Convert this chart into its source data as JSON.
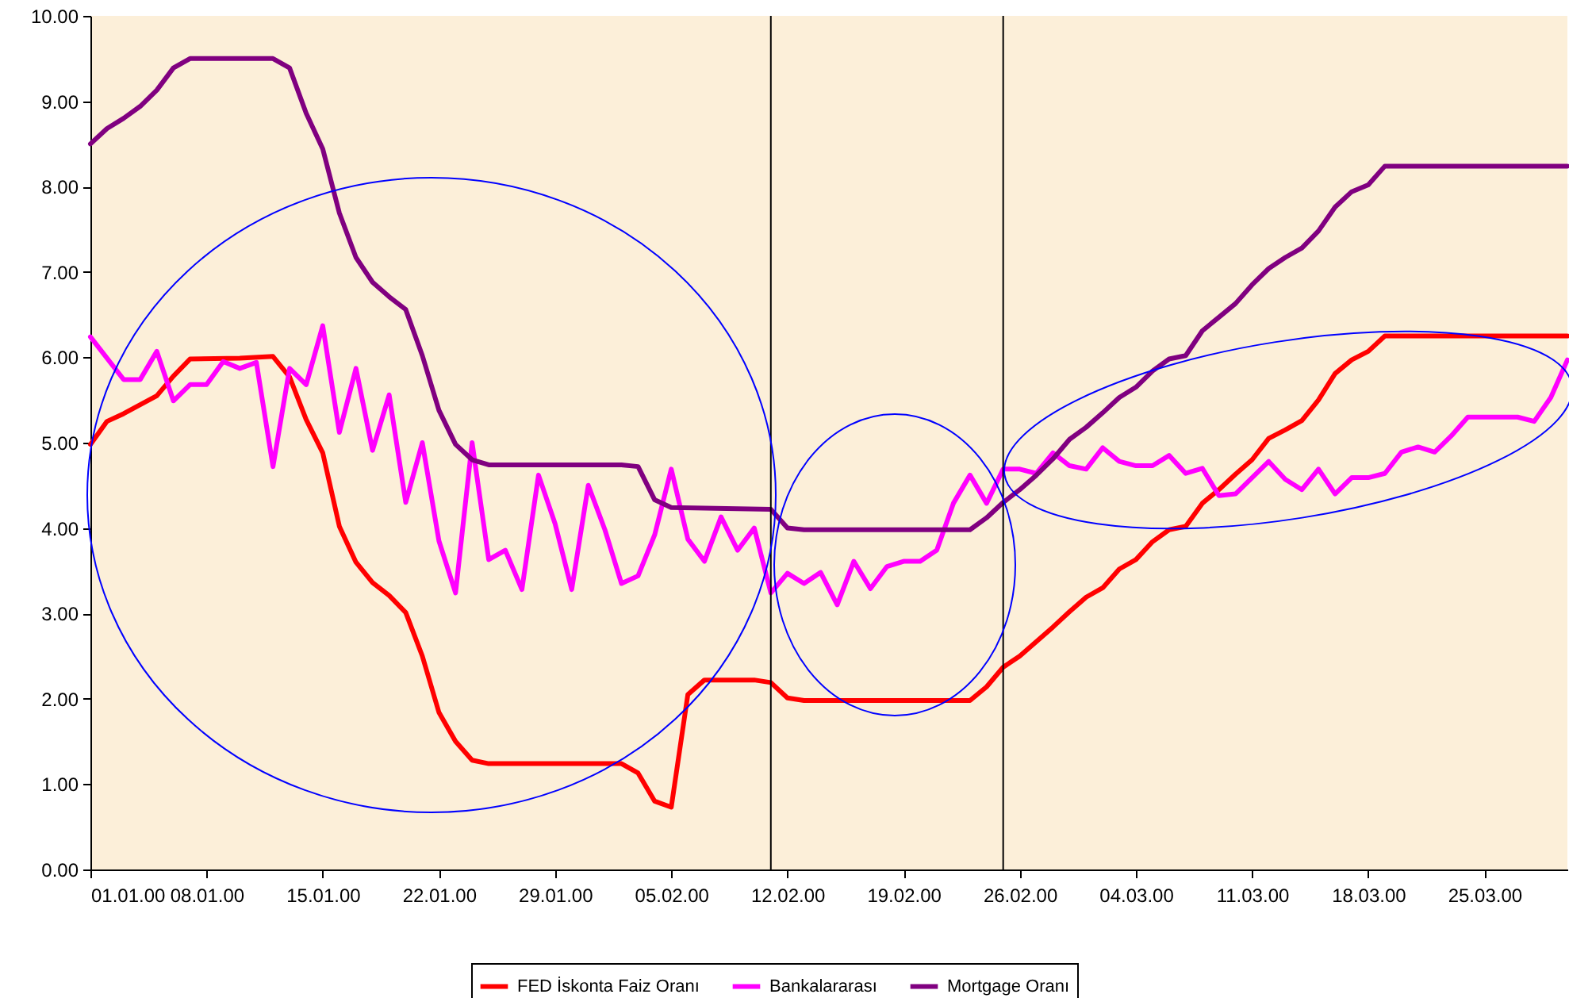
{
  "chart_data": {
    "type": "line",
    "xlim": [
      "2000-01-01",
      "2000-03-30"
    ],
    "xticks": [
      {
        "value": "2000-01-01",
        "label": "01.01.00"
      },
      {
        "value": "2000-01-08",
        "label": "08.01.00"
      },
      {
        "value": "2000-01-15",
        "label": "15.01.00"
      },
      {
        "value": "2000-01-22",
        "label": "22.01.00"
      },
      {
        "value": "2000-01-29",
        "label": "29.01.00"
      },
      {
        "value": "2000-02-05",
        "label": "05.02.00"
      },
      {
        "value": "2000-02-12",
        "label": "12.02.00"
      },
      {
        "value": "2000-02-19",
        "label": "19.02.00"
      },
      {
        "value": "2000-02-26",
        "label": "26.02.00"
      },
      {
        "value": "2000-03-04",
        "label": "04.03.00"
      },
      {
        "value": "2000-03-11",
        "label": "11.03.00"
      },
      {
        "value": "2000-03-18",
        "label": "18.03.00"
      },
      {
        "value": "2000-03-25",
        "label": "25.03.00"
      }
    ],
    "ylim": [
      0,
      10
    ],
    "yticks": [
      {
        "value": 0,
        "label": "0.00"
      },
      {
        "value": 1,
        "label": "1.00"
      },
      {
        "value": 2,
        "label": "2.00"
      },
      {
        "value": 3,
        "label": "3.00"
      },
      {
        "value": 4,
        "label": "4.00"
      },
      {
        "value": 5,
        "label": "5.00"
      },
      {
        "value": 6,
        "label": "6.00"
      },
      {
        "value": 7,
        "label": "7.00"
      },
      {
        "value": 8,
        "label": "8.00"
      },
      {
        "value": 9,
        "label": "9.00"
      },
      {
        "value": 10,
        "label": "10.00"
      }
    ],
    "grid": false,
    "legend": "bottom",
    "line_style": "solid",
    "ref_lines": [
      {
        "axis": "x",
        "value": "2000-02-11",
        "color": "#000000"
      },
      {
        "axis": "x",
        "value": "2000-02-25",
        "color": "#000000"
      }
    ],
    "series": [
      {
        "name": "FED İskonta Faiz Oranı",
        "color": "#ff0000",
        "x": [
          "2000-01-01",
          "2000-01-02",
          "2000-01-03",
          "2000-01-05",
          "2000-01-06",
          "2000-01-07",
          "2000-01-10",
          "2000-01-12",
          "2000-01-13",
          "2000-01-14",
          "2000-01-15",
          "2000-01-16",
          "2000-01-17",
          "2000-01-18",
          "2000-01-19",
          "2000-01-20",
          "2000-01-21",
          "2000-01-22",
          "2000-01-23",
          "2000-01-24",
          "2000-01-25",
          "2000-02-02",
          "2000-02-03",
          "2000-02-04",
          "2000-02-05",
          "2000-02-06",
          "2000-02-07",
          "2000-02-10",
          "2000-02-11",
          "2000-02-12",
          "2000-02-13",
          "2000-02-23",
          "2000-02-24",
          "2000-02-25",
          "2000-02-26",
          "2000-02-27",
          "2000-02-28",
          "2000-02-29",
          "2000-03-01",
          "2000-03-02",
          "2000-03-03",
          "2000-03-04",
          "2000-03-05",
          "2000-03-06",
          "2000-03-07",
          "2000-03-08",
          "2000-03-09",
          "2000-03-10",
          "2000-03-11",
          "2000-03-12",
          "2000-03-13",
          "2000-03-14",
          "2000-03-15",
          "2000-03-16",
          "2000-03-17",
          "2000-03-18",
          "2000-03-19",
          "2000-03-30"
        ],
        "values": [
          4.98,
          5.25,
          5.34,
          5.55,
          5.78,
          5.98,
          5.99,
          6.01,
          5.77,
          5.27,
          4.88,
          4.02,
          3.6,
          3.36,
          3.21,
          3.01,
          2.5,
          1.84,
          1.5,
          1.28,
          1.24,
          1.24,
          1.13,
          0.8,
          0.73,
          2.05,
          2.22,
          2.22,
          2.19,
          2.01,
          1.98,
          1.98,
          2.14,
          2.37,
          2.5,
          2.67,
          2.84,
          3.02,
          3.19,
          3.3,
          3.52,
          3.63,
          3.84,
          3.98,
          4.02,
          4.29,
          4.45,
          4.63,
          4.8,
          5.05,
          5.15,
          5.26,
          5.5,
          5.81,
          5.97,
          6.07,
          6.25,
          6.25
        ]
      },
      {
        "name": "Bankalararası",
        "color": "#ff00ff",
        "x": [
          "2000-01-01",
          "2000-01-03",
          "2000-01-04",
          "2000-01-05",
          "2000-01-06",
          "2000-01-07",
          "2000-01-08",
          "2000-01-09",
          "2000-01-10",
          "2000-01-11",
          "2000-01-12",
          "2000-01-13",
          "2000-01-14",
          "2000-01-15",
          "2000-01-16",
          "2000-01-17",
          "2000-01-18",
          "2000-01-19",
          "2000-01-20",
          "2000-01-21",
          "2000-01-22",
          "2000-01-23",
          "2000-01-24",
          "2000-01-25",
          "2000-01-26",
          "2000-01-27",
          "2000-01-28",
          "2000-01-29",
          "2000-01-30",
          "2000-01-31",
          "2000-02-01",
          "2000-02-02",
          "2000-02-03",
          "2000-02-04",
          "2000-02-05",
          "2000-02-06",
          "2000-02-07",
          "2000-02-08",
          "2000-02-09",
          "2000-02-10",
          "2000-02-11",
          "2000-02-12",
          "2000-02-13",
          "2000-02-14",
          "2000-02-15",
          "2000-02-16",
          "2000-02-17",
          "2000-02-18",
          "2000-02-19",
          "2000-02-20",
          "2000-02-21",
          "2000-02-22",
          "2000-02-23",
          "2000-02-24",
          "2000-02-25",
          "2000-02-26",
          "2000-02-27",
          "2000-02-28",
          "2000-02-29",
          "2000-03-01",
          "2000-03-02",
          "2000-03-03",
          "2000-03-04",
          "2000-03-05",
          "2000-03-06",
          "2000-03-07",
          "2000-03-08",
          "2000-03-09",
          "2000-03-10",
          "2000-03-11",
          "2000-03-12",
          "2000-03-13",
          "2000-03-14",
          "2000-03-15",
          "2000-03-16",
          "2000-03-17",
          "2000-03-18",
          "2000-03-19",
          "2000-03-20",
          "2000-03-21",
          "2000-03-22",
          "2000-03-23",
          "2000-03-24",
          "2000-03-25",
          "2000-03-26",
          "2000-03-27",
          "2000-03-28",
          "2000-03-29",
          "2000-03-30"
        ],
        "values": [
          6.24,
          5.74,
          5.74,
          6.07,
          5.49,
          5.68,
          5.68,
          5.95,
          5.87,
          5.94,
          4.72,
          5.87,
          5.68,
          6.37,
          5.12,
          5.87,
          4.91,
          5.56,
          4.3,
          5.0,
          3.85,
          3.24,
          5.0,
          3.63,
          3.74,
          3.28,
          4.62,
          4.05,
          3.28,
          4.5,
          3.98,
          3.35,
          3.44,
          3.92,
          4.69,
          3.87,
          3.61,
          4.13,
          3.74,
          4.0,
          3.24,
          3.47,
          3.35,
          3.48,
          3.1,
          3.61,
          3.29,
          3.55,
          3.61,
          3.61,
          3.74,
          4.29,
          4.62,
          4.29,
          4.69,
          4.69,
          4.64,
          4.88,
          4.73,
          4.69,
          4.94,
          4.78,
          4.73,
          4.73,
          4.85,
          4.64,
          4.7,
          4.38,
          4.4,
          4.59,
          4.78,
          4.57,
          4.45,
          4.69,
          4.4,
          4.59,
          4.59,
          4.64,
          4.89,
          4.95,
          4.89,
          5.08,
          5.3,
          5.3,
          5.3,
          5.3,
          5.25,
          5.53,
          5.97
        ]
      },
      {
        "name": "Mortgage Oranı",
        "color": "#800080",
        "x": [
          "2000-01-01",
          "2000-01-02",
          "2000-01-03",
          "2000-01-04",
          "2000-01-05",
          "2000-01-06",
          "2000-01-07",
          "2000-01-12",
          "2000-01-13",
          "2000-01-14",
          "2000-01-15",
          "2000-01-16",
          "2000-01-17",
          "2000-01-18",
          "2000-01-19",
          "2000-01-20",
          "2000-01-21",
          "2000-01-22",
          "2000-01-23",
          "2000-01-24",
          "2000-01-25",
          "2000-02-02",
          "2000-02-03",
          "2000-02-04",
          "2000-02-05",
          "2000-02-11",
          "2000-02-12",
          "2000-02-13",
          "2000-02-23",
          "2000-02-24",
          "2000-02-25",
          "2000-02-26",
          "2000-02-27",
          "2000-02-28",
          "2000-02-29",
          "2000-03-01",
          "2000-03-02",
          "2000-03-03",
          "2000-03-04",
          "2000-03-05",
          "2000-03-06",
          "2000-03-07",
          "2000-03-08",
          "2000-03-09",
          "2000-03-10",
          "2000-03-11",
          "2000-03-12",
          "2000-03-13",
          "2000-03-14",
          "2000-03-15",
          "2000-03-16",
          "2000-03-17",
          "2000-03-18",
          "2000-03-19",
          "2000-03-30"
        ],
        "values": [
          8.5,
          8.68,
          8.8,
          8.94,
          9.13,
          9.39,
          9.5,
          9.5,
          9.39,
          8.86,
          8.44,
          7.69,
          7.17,
          6.88,
          6.71,
          6.56,
          6.02,
          5.38,
          4.98,
          4.8,
          4.74,
          4.74,
          4.72,
          4.33,
          4.24,
          4.22,
          4.0,
          3.98,
          3.98,
          4.12,
          4.3,
          4.45,
          4.62,
          4.81,
          5.04,
          5.18,
          5.35,
          5.53,
          5.65,
          5.84,
          5.98,
          6.02,
          6.31,
          6.47,
          6.63,
          6.85,
          7.04,
          7.17,
          7.28,
          7.48,
          7.76,
          7.94,
          8.02,
          8.24,
          8.24
        ]
      }
    ]
  }
}
